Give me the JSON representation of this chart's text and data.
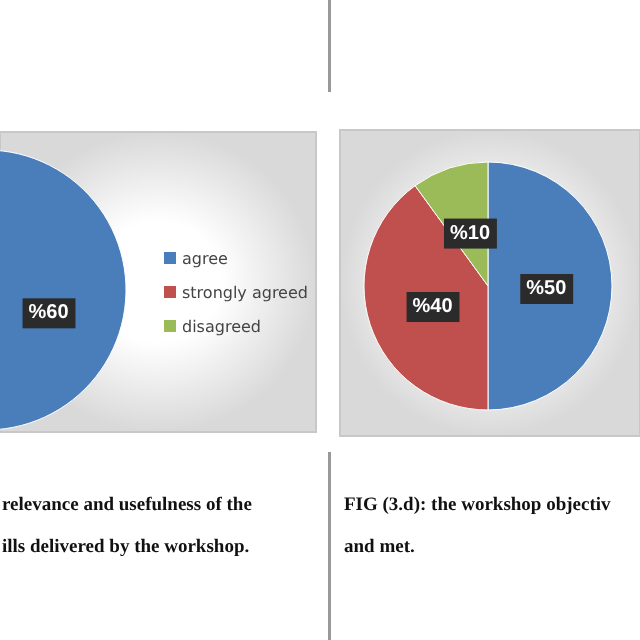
{
  "chart_data": [
    {
      "type": "pie",
      "categories": [
        "agree",
        "strongly agreed",
        "disagreed"
      ],
      "values": [
        60,
        null,
        null
      ],
      "colors": [
        "#4a7ebb",
        "#c0504d",
        "#9bbb59"
      ],
      "value_labels": [
        "%60",
        null,
        null
      ],
      "legend": "right",
      "annotations": [
        "relevance and usefulness of the",
        "ills delivered by the workshop."
      ]
    },
    {
      "type": "pie",
      "categories": [
        null,
        null,
        null
      ],
      "values": [
        50,
        40,
        10
      ],
      "colors": [
        "#4a7ebb",
        "#c0504d",
        "#9bbb59"
      ],
      "value_labels": [
        "%50",
        "%40",
        "%10"
      ],
      "annotations": [
        "FIG (3.d): the workshop objectiv",
        "and met."
      ]
    }
  ]
}
